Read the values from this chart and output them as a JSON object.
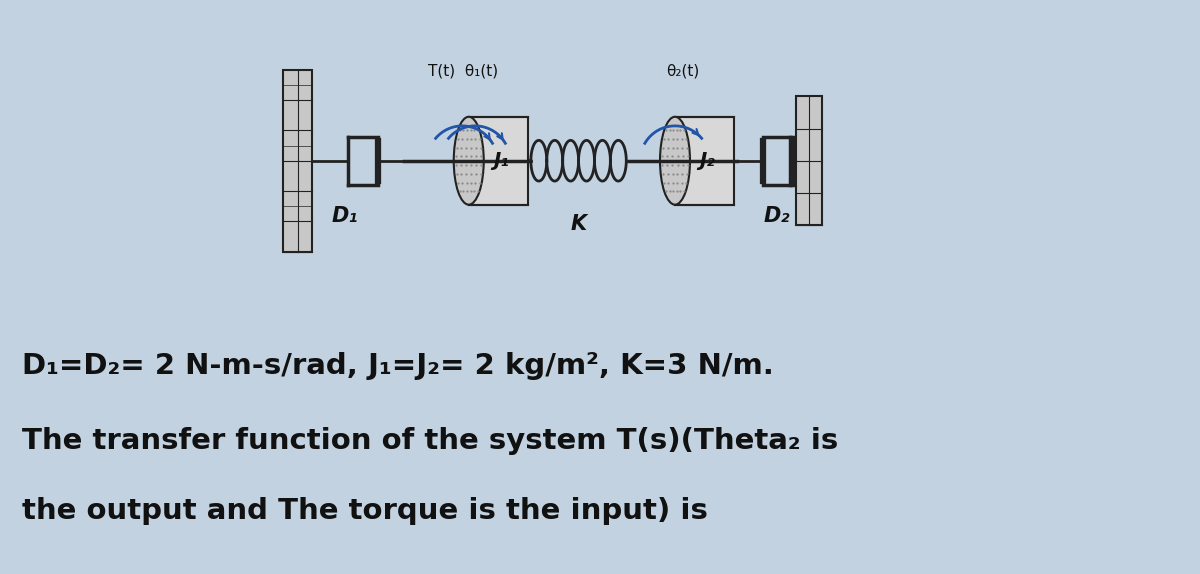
{
  "bg_diagram_color": "#d4dde6",
  "bg_text_color": "#c2d2e0",
  "text_color": "#111111",
  "diagram_text_color": "#111111",
  "labels": {
    "T": "T(t)",
    "theta1": "θ₁(t)",
    "theta2": "θ₂(t)",
    "J1": "J₁",
    "J2": "J₂",
    "D1": "D₁",
    "D2": "D₂",
    "K": "K"
  },
  "text_lines": [
    "D₁=D₂= 2 N-m-s/rad, J₁=J₂= 2 kg/m², K=3 N/m.",
    "The transfer function of the system T(s)(Theta₂ is",
    "the output and The torque is the input) is"
  ],
  "figsize": [
    12.0,
    5.74
  ],
  "dpi": 100
}
